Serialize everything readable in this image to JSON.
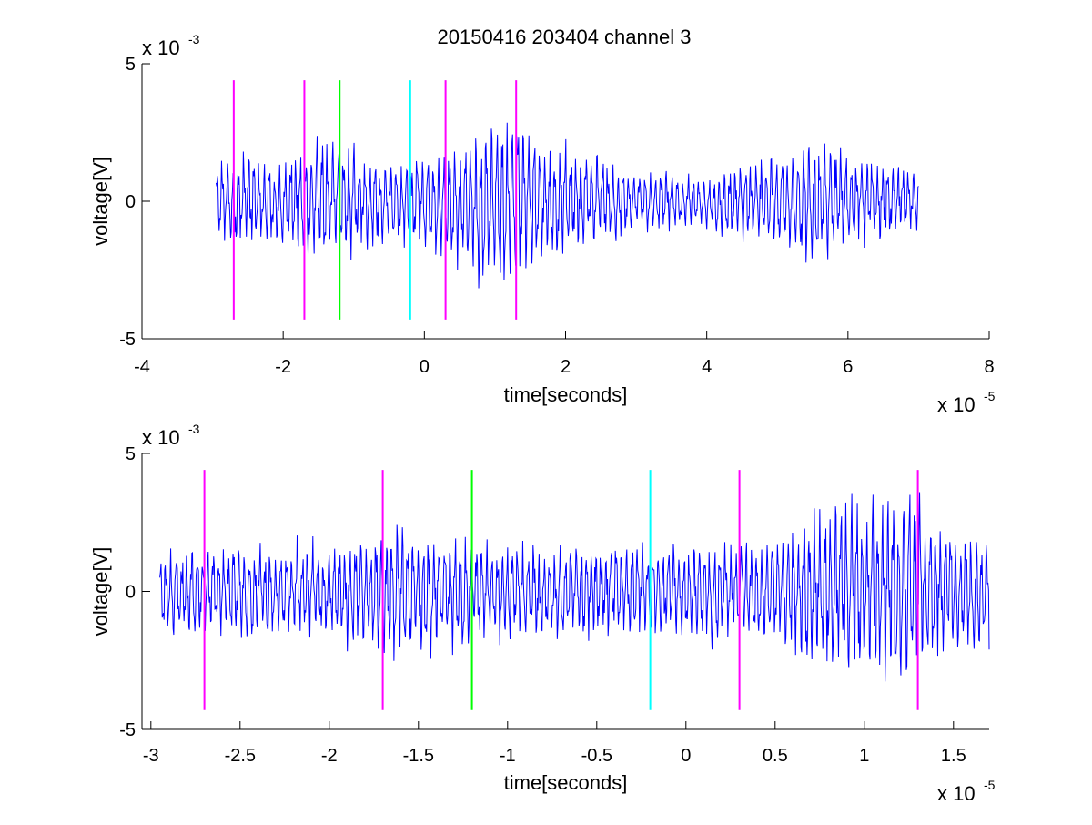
{
  "figure": {
    "title": "20150416 203404 channel 3",
    "colors": {
      "signal": "#0000ff",
      "marker_magenta": "#ff00ff",
      "marker_green": "#00ff00",
      "marker_cyan": "#00ffff"
    }
  },
  "chart_data": [
    {
      "type": "line",
      "title": "20150416 203404 channel 3",
      "xlabel": "time[seconds]",
      "ylabel": "voltage[V]",
      "x_multiplier": {
        "base": "x 10",
        "exponent": "-5"
      },
      "y_multiplier": {
        "base": "x 10",
        "exponent": "-3"
      },
      "xlim": [
        -4,
        8
      ],
      "ylim": [
        -5,
        5
      ],
      "xticks": [
        -4,
        -2,
        0,
        2,
        4,
        6,
        8
      ],
      "xtick_labels": [
        "-4",
        "-2",
        "0",
        "2",
        "4",
        "6",
        "8"
      ],
      "yticks": [
        -5,
        0,
        5
      ],
      "ytick_labels": [
        "-5",
        "0",
        "5"
      ],
      "grid": false,
      "series": [
        {
          "signal_range": [
            -2.95,
            7.0
          ],
          "amplitude_envelope": [
            [
              -2.95,
              1.6
            ],
            [
              -2.0,
              1.8
            ],
            [
              -1.5,
              2.4
            ],
            [
              -1.0,
              2.0
            ],
            [
              -0.5,
              1.6
            ],
            [
              0.0,
              1.8
            ],
            [
              0.5,
              2.4
            ],
            [
              0.9,
              3.2
            ],
            [
              1.2,
              3.4
            ],
            [
              1.5,
              2.6
            ],
            [
              2.0,
              2.0
            ],
            [
              3.0,
              1.2
            ],
            [
              4.0,
              1.0
            ],
            [
              4.5,
              1.6
            ],
            [
              5.0,
              1.8
            ],
            [
              5.5,
              2.6
            ],
            [
              6.0,
              1.8
            ],
            [
              7.0,
              1.2
            ]
          ]
        }
      ],
      "markers": [
        {
          "x": -2.7,
          "color": "magenta"
        },
        {
          "x": -1.7,
          "color": "magenta"
        },
        {
          "x": -1.2,
          "color": "green"
        },
        {
          "x": -0.2,
          "color": "cyan"
        },
        {
          "x": 0.3,
          "color": "magenta"
        },
        {
          "x": 1.3,
          "color": "magenta"
        }
      ],
      "marker_ylim": [
        -4.3,
        4.4
      ]
    },
    {
      "type": "line",
      "title": "",
      "xlabel": "time[seconds]",
      "ylabel": "voltage[V]",
      "x_multiplier": {
        "base": "x 10",
        "exponent": "-5"
      },
      "y_multiplier": {
        "base": "x 10",
        "exponent": "-3"
      },
      "xlim": [
        -3.05,
        1.7
      ],
      "ylim": [
        -5,
        5
      ],
      "xticks": [
        -3,
        -2.5,
        -2,
        -1.5,
        -1,
        -0.5,
        0,
        0.5,
        1,
        1.5
      ],
      "xtick_labels": [
        "-3",
        "-2.5",
        "-2",
        "-1.5",
        "-1",
        "-0.5",
        "0",
        "0.5",
        "1",
        "1.5"
      ],
      "yticks": [
        -5,
        0,
        5
      ],
      "ytick_labels": [
        "-5",
        "0",
        "5"
      ],
      "grid": false,
      "series": [
        {
          "signal_range": [
            -2.95,
            1.7
          ],
          "amplitude_envelope": [
            [
              -2.95,
              1.6
            ],
            [
              -2.5,
              1.8
            ],
            [
              -2.0,
              1.8
            ],
            [
              -1.6,
              2.6
            ],
            [
              -1.3,
              2.2
            ],
            [
              -1.0,
              1.8
            ],
            [
              -0.5,
              1.8
            ],
            [
              0.0,
              1.8
            ],
            [
              0.5,
              2.0
            ],
            [
              0.7,
              3.2
            ],
            [
              0.9,
              3.4
            ],
            [
              1.1,
              3.6
            ],
            [
              1.25,
              3.8
            ],
            [
              1.4,
              2.6
            ],
            [
              1.7,
              2.2
            ]
          ]
        }
      ],
      "markers": [
        {
          "x": -2.7,
          "color": "magenta"
        },
        {
          "x": -1.7,
          "color": "magenta"
        },
        {
          "x": -1.2,
          "color": "green"
        },
        {
          "x": -0.2,
          "color": "cyan"
        },
        {
          "x": 0.3,
          "color": "magenta"
        },
        {
          "x": 1.3,
          "color": "magenta"
        }
      ],
      "marker_ylim": [
        -4.3,
        4.4
      ]
    }
  ]
}
